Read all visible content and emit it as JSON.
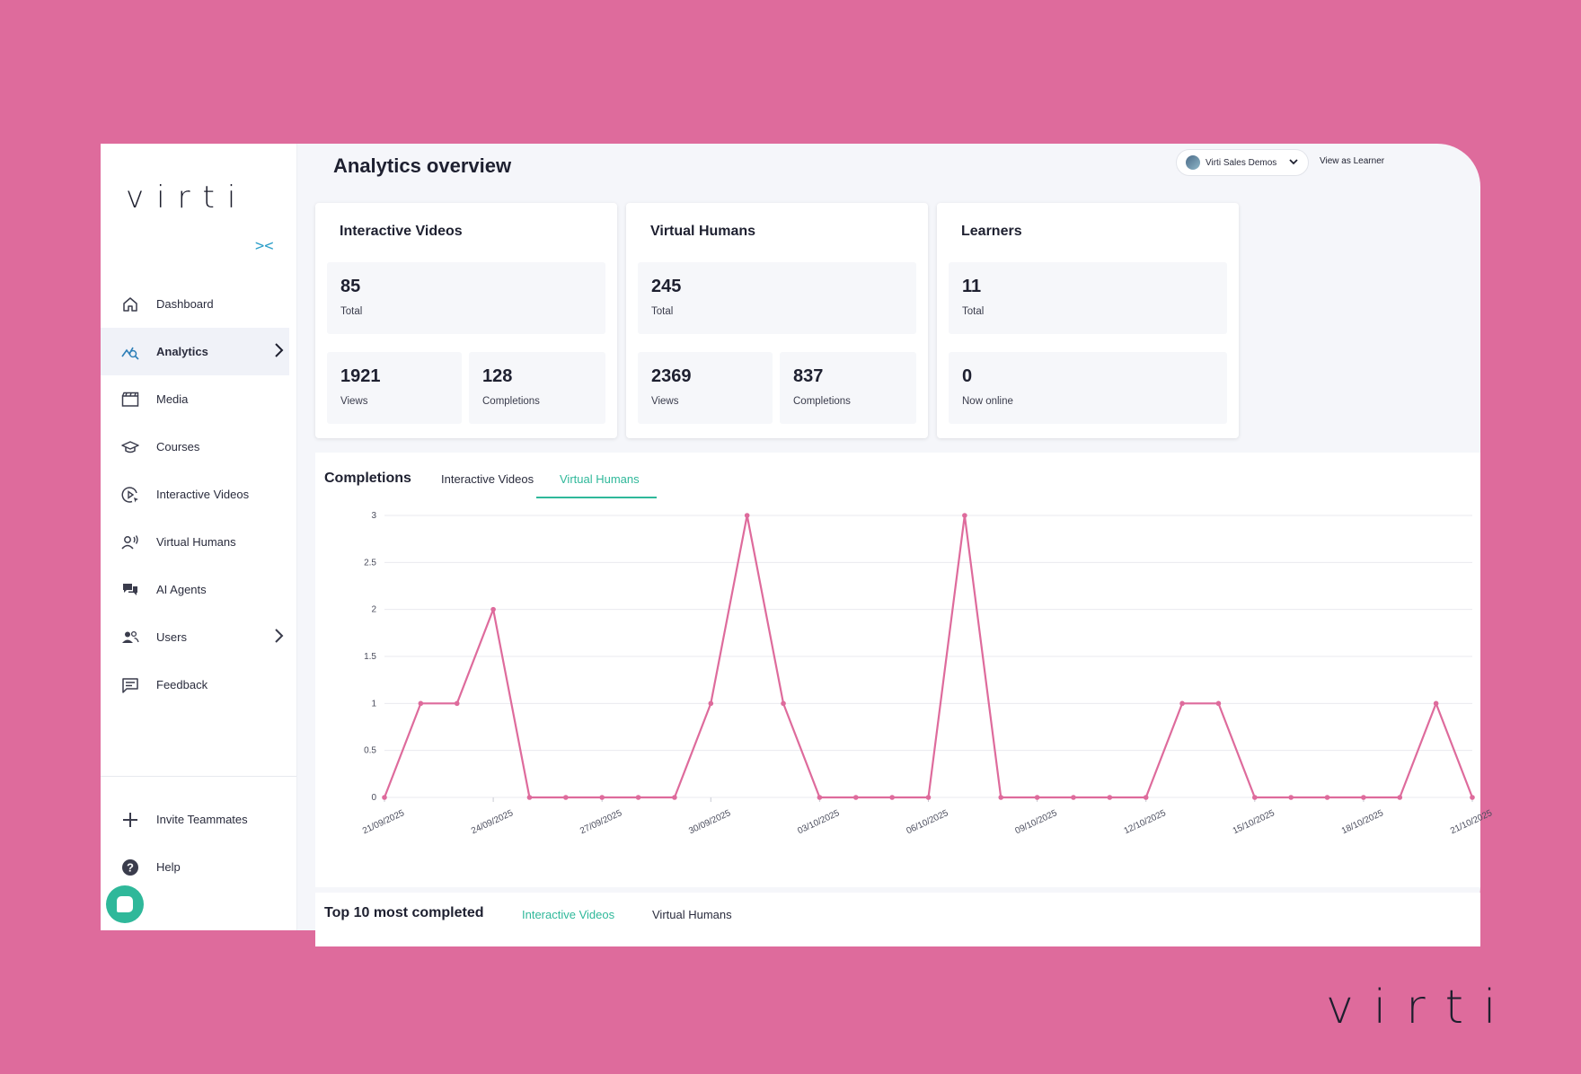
{
  "app": {
    "logo_text": "virti",
    "brand_logo_text": "virti"
  },
  "header": {
    "title": "Analytics overview",
    "account": "Virti Sales Demos",
    "view_as_learner": "View as Learner"
  },
  "sidebar": {
    "collapse_symbol": "><",
    "items": [
      {
        "label": "Dashboard",
        "icon": "home-icon"
      },
      {
        "label": "Analytics",
        "icon": "analytics-icon",
        "active": true
      },
      {
        "label": "Media",
        "icon": "clapperboard-icon"
      },
      {
        "label": "Courses",
        "icon": "graduation-cap-icon"
      },
      {
        "label": "Interactive Videos",
        "icon": "play-circle-icon"
      },
      {
        "label": "Virtual Humans",
        "icon": "person-voice-icon"
      },
      {
        "label": "AI Agents",
        "icon": "chat-bubbles-icon"
      },
      {
        "label": "Users",
        "icon": "users-icon"
      },
      {
        "label": "Feedback",
        "icon": "message-square-icon"
      }
    ],
    "bottom_items": [
      {
        "label": "Invite Teammates",
        "icon": "plus-icon"
      },
      {
        "label": "Help",
        "icon": "help-icon"
      }
    ]
  },
  "cards": [
    {
      "title": "Interactive Videos",
      "total": "85",
      "total_label": "Total",
      "left_value": "1921",
      "left_label": "Views",
      "right_value": "128",
      "right_label": "Completions"
    },
    {
      "title": "Virtual Humans",
      "total": "245",
      "total_label": "Total",
      "left_value": "2369",
      "left_label": "Views",
      "right_value": "837",
      "right_label": "Completions"
    },
    {
      "title": "Learners",
      "total": "11",
      "total_label": "Total",
      "left_value": "0",
      "left_label": "Now online"
    }
  ],
  "completions": {
    "title": "Completions",
    "tabs": [
      "Interactive Videos",
      "Virtual Humans"
    ],
    "active_tab": "Virtual Humans"
  },
  "top10": {
    "title": "Top 10 most completed",
    "tabs": [
      "Interactive Videos",
      "Virtual Humans"
    ],
    "active_tab": "Interactive Videos"
  },
  "colors": {
    "accent": "#2fb89a",
    "line": "#de6b9c",
    "background": "#de6b9c"
  },
  "chart_data": {
    "type": "line",
    "x": [
      "21/09/2025",
      "22/09/2025",
      "23/09/2025",
      "24/09/2025",
      "25/09/2025",
      "26/09/2025",
      "27/09/2025",
      "28/09/2025",
      "29/09/2025",
      "30/09/2025",
      "01/10/2025",
      "02/10/2025",
      "03/10/2025",
      "04/10/2025",
      "05/10/2025",
      "06/10/2025",
      "07/10/2025",
      "08/10/2025",
      "09/10/2025",
      "10/10/2025",
      "11/10/2025",
      "12/10/2025",
      "13/10/2025",
      "14/10/2025",
      "15/10/2025",
      "16/10/2025",
      "17/10/2025",
      "18/10/2025",
      "19/10/2025",
      "20/10/2025",
      "21/10/2025"
    ],
    "x_tick_labels": [
      "21/09/2025",
      "24/09/2025",
      "27/09/2025",
      "30/09/2025",
      "03/10/2025",
      "06/10/2025",
      "09/10/2025",
      "12/10/2025",
      "15/10/2025",
      "18/10/2025",
      "21/10/2025"
    ],
    "values": [
      0,
      1,
      1,
      2,
      0,
      0,
      0,
      0,
      0,
      1,
      3,
      1,
      0,
      0,
      0,
      0,
      3,
      0,
      0,
      0,
      0,
      0,
      1,
      1,
      0,
      0,
      0,
      0,
      0,
      1,
      0
    ],
    "ylim": [
      0,
      3
    ],
    "y_ticks": [
      "0",
      "0.5",
      "1",
      "1.5",
      "2",
      "2.5",
      "3"
    ],
    "grid": true
  }
}
